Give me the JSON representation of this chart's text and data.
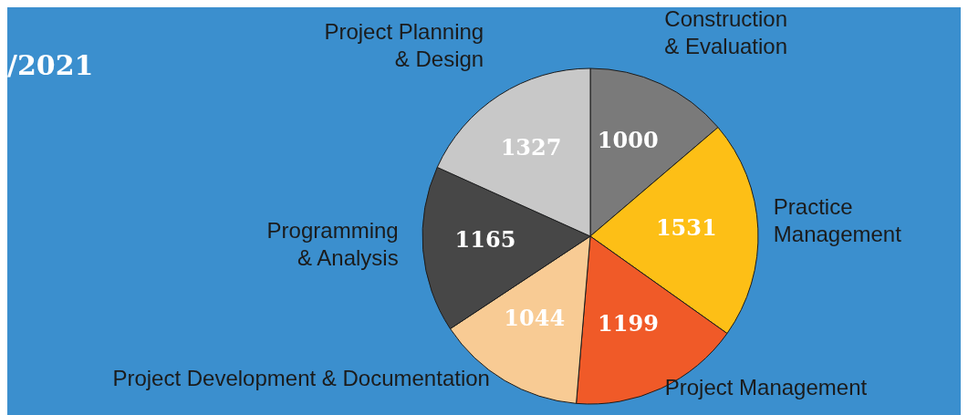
{
  "chart_data": {
    "type": "pie",
    "title": "/2021",
    "categories": [
      "Construction\n& Evaluation",
      "Practice\nManagement",
      "Project Management",
      "Project Development & Documentation",
      "Programming\n& Analysis",
      "Project Planning\n& Design"
    ],
    "values": [
      1000,
      1531,
      1199,
      1044,
      1165,
      1327
    ],
    "colors": [
      "#7a7a7a",
      "#fdbf16",
      "#f05a28",
      "#f8cb94",
      "#474747",
      "#c8c8c8"
    ],
    "data_labels": true,
    "legend": false
  }
}
